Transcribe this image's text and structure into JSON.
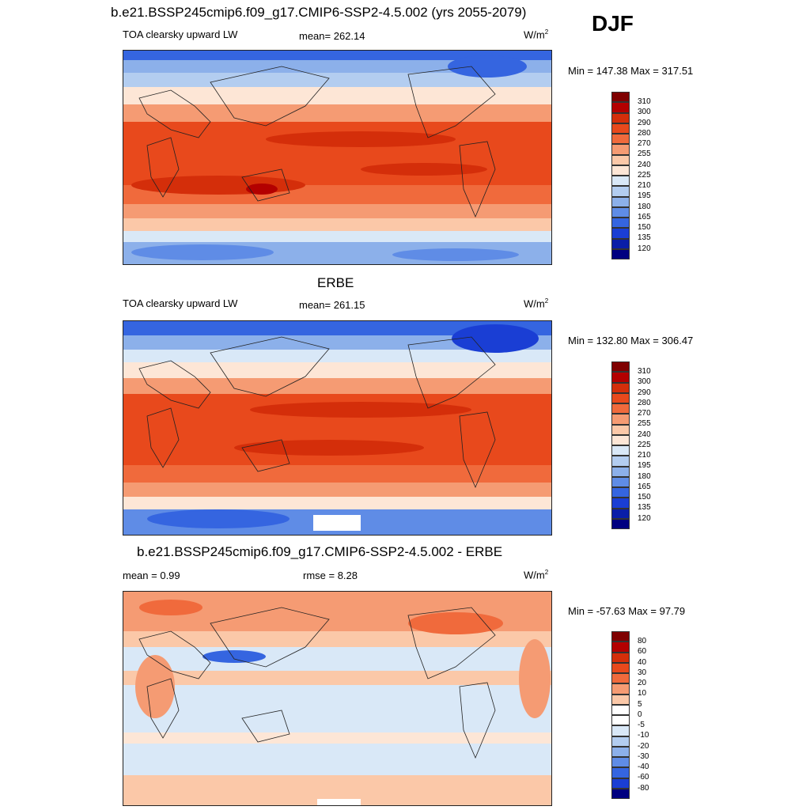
{
  "season": "DJF",
  "panels": [
    {
      "id": "model",
      "title": "b.e21.BSSP245cmip6.f09_g17.CMIP6-SSP2-4.5.002 (yrs 2055-2079)",
      "left_label": "TOA clearsky upward LW",
      "center_label": "mean= 262.14",
      "units": "W/m",
      "units_sup": "2",
      "minmax": "Min = 147.38 Max = 317.51",
      "colorbar_ticks": [
        "310",
        "300",
        "290",
        "280",
        "270",
        "255",
        "240",
        "225",
        "210",
        "195",
        "180",
        "165",
        "150",
        "135",
        "120"
      ]
    },
    {
      "id": "obs",
      "title": "ERBE",
      "left_label": "TOA clearsky upward LW",
      "center_label": "mean= 261.15",
      "units": "W/m",
      "units_sup": "2",
      "minmax": "Min = 132.80 Max = 306.47",
      "colorbar_ticks": [
        "310",
        "300",
        "290",
        "280",
        "270",
        "255",
        "240",
        "225",
        "210",
        "195",
        "180",
        "165",
        "150",
        "135",
        "120"
      ]
    },
    {
      "id": "diff",
      "title": "b.e21.BSSP245cmip6.f09_g17.CMIP6-SSP2-4.5.002 - ERBE",
      "left_label": "mean =   0.99",
      "center_label": "rmse =   8.28",
      "units": "W/m",
      "units_sup": "2",
      "minmax": "Min = -57.63 Max =  97.79",
      "colorbar_ticks": [
        "80",
        "60",
        "40",
        "30",
        "20",
        "10",
        "5",
        "0",
        "-5",
        "-10",
        "-20",
        "-30",
        "-40",
        "-60",
        "-80"
      ]
    }
  ],
  "colors": {
    "abs_scale": [
      "#7f0000",
      "#b30000",
      "#d42e0a",
      "#e8491c",
      "#f06a3c",
      "#f59b73",
      "#fbc8a8",
      "#fde6d6",
      "#d9e8f7",
      "#b3cdf0",
      "#8cb0ea",
      "#5f8ce6",
      "#3565e0",
      "#1a3ed4",
      "#0a1ea8",
      "#000080"
    ],
    "diff_scale": [
      "#7f0000",
      "#b30000",
      "#d42e0a",
      "#e8491c",
      "#f06a3c",
      "#f59b73",
      "#fbc8a8",
      "#ffffff",
      "#ffffff",
      "#d9e8f7",
      "#b3cdf0",
      "#8cb0ea",
      "#5f8ce6",
      "#3565e0",
      "#1a3ed4",
      "#000080"
    ]
  }
}
